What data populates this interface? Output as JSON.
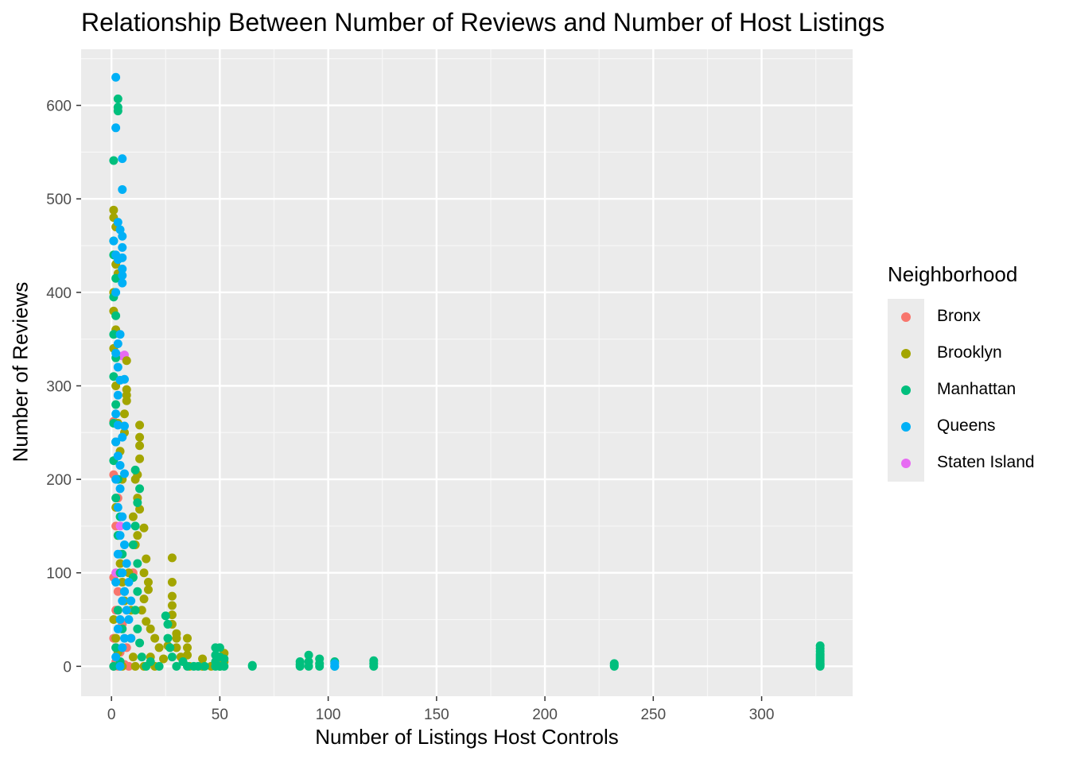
{
  "chart_data": {
    "type": "scatter",
    "title": "Relationship Between Number of Reviews and Number of Host Listings",
    "xlabel": "Number of Listings Host Controls",
    "ylabel": "Number of Reviews",
    "xlim": [
      -14,
      342
    ],
    "ylim": [
      -32,
      660
    ],
    "x_ticks": [
      0,
      50,
      100,
      150,
      200,
      250,
      300
    ],
    "y_ticks": [
      0,
      100,
      200,
      300,
      400,
      500,
      600
    ],
    "grid": true,
    "legend": {
      "title": "Neighborhood",
      "position": "right"
    },
    "series": [
      {
        "name": "Bronx",
        "color": "#F8766D",
        "points": [
          [
            1,
            262
          ],
          [
            2,
            240
          ],
          [
            1,
            205
          ],
          [
            3,
            180
          ],
          [
            2,
            150
          ],
          [
            4,
            120
          ],
          [
            1,
            95
          ],
          [
            3,
            80
          ],
          [
            2,
            60
          ],
          [
            5,
            45
          ],
          [
            1,
            30
          ],
          [
            4,
            15
          ],
          [
            2,
            5
          ],
          [
            6,
            2
          ],
          [
            8,
            0
          ],
          [
            1,
            0
          ],
          [
            3,
            0
          ],
          [
            10,
            100
          ],
          [
            7,
            20
          ],
          [
            4,
            3
          ]
        ]
      },
      {
        "name": "Brooklyn",
        "color": "#A3A500",
        "points": [
          [
            1,
            488
          ],
          [
            1,
            480
          ],
          [
            2,
            470
          ],
          [
            2,
            430
          ],
          [
            3,
            420
          ],
          [
            1,
            400
          ],
          [
            1,
            380
          ],
          [
            2,
            360
          ],
          [
            1,
            340
          ],
          [
            7,
            327
          ],
          [
            7,
            296
          ],
          [
            7,
            290
          ],
          [
            7,
            284
          ],
          [
            6,
            270
          ],
          [
            6,
            250
          ],
          [
            13,
            258
          ],
          [
            13,
            245
          ],
          [
            13,
            236
          ],
          [
            13,
            222
          ],
          [
            12,
            205
          ],
          [
            11,
            200
          ],
          [
            12,
            180
          ],
          [
            13,
            168
          ],
          [
            10,
            160
          ],
          [
            15,
            148
          ],
          [
            12,
            140
          ],
          [
            11,
            130
          ],
          [
            16,
            115
          ],
          [
            15,
            100
          ],
          [
            17,
            90
          ],
          [
            17,
            82
          ],
          [
            15,
            72
          ],
          [
            14,
            60
          ],
          [
            16,
            48
          ],
          [
            18,
            40
          ],
          [
            20,
            30
          ],
          [
            22,
            20
          ],
          [
            18,
            10
          ],
          [
            15,
            0
          ],
          [
            28,
            116
          ],
          [
            28,
            90
          ],
          [
            28,
            75
          ],
          [
            28,
            65
          ],
          [
            28,
            55
          ],
          [
            28,
            45
          ],
          [
            30,
            35
          ],
          [
            30,
            30
          ],
          [
            30,
            20
          ],
          [
            32,
            10
          ],
          [
            35,
            30
          ],
          [
            35,
            20
          ],
          [
            35,
            12
          ],
          [
            42,
            8
          ],
          [
            42,
            0
          ],
          [
            52,
            14
          ],
          [
            52,
            5
          ],
          [
            50,
            0
          ],
          [
            46,
            0
          ],
          [
            36,
            0
          ],
          [
            26,
            22
          ],
          [
            24,
            8
          ],
          [
            20,
            0
          ],
          [
            2,
            300
          ],
          [
            3,
            260
          ],
          [
            4,
            230
          ],
          [
            5,
            200
          ],
          [
            2,
            170
          ],
          [
            3,
            140
          ],
          [
            4,
            110
          ],
          [
            5,
            90
          ],
          [
            6,
            70
          ],
          [
            1,
            50
          ],
          [
            2,
            30
          ],
          [
            3,
            15
          ],
          [
            4,
            5
          ],
          [
            5,
            0
          ],
          [
            8,
            100
          ],
          [
            9,
            60
          ],
          [
            9,
            30
          ],
          [
            10,
            10
          ],
          [
            11,
            0
          ]
        ]
      },
      {
        "name": "Manhattan",
        "color": "#00BF7D",
        "points": [
          [
            3,
            607
          ],
          [
            3,
            598
          ],
          [
            3,
            594
          ],
          [
            1,
            541
          ],
          [
            1,
            455
          ],
          [
            1,
            440
          ],
          [
            2,
            415
          ],
          [
            1,
            395
          ],
          [
            2,
            375
          ],
          [
            1,
            355
          ],
          [
            2,
            330
          ],
          [
            1,
            310
          ],
          [
            2,
            280
          ],
          [
            1,
            260
          ],
          [
            2,
            240
          ],
          [
            1,
            220
          ],
          [
            3,
            200
          ],
          [
            2,
            180
          ],
          [
            4,
            160
          ],
          [
            3,
            140
          ],
          [
            5,
            120
          ],
          [
            4,
            100
          ],
          [
            6,
            80
          ],
          [
            3,
            60
          ],
          [
            5,
            40
          ],
          [
            2,
            20
          ],
          [
            4,
            5
          ],
          [
            1,
            0
          ],
          [
            11,
            210
          ],
          [
            13,
            190
          ],
          [
            12,
            175
          ],
          [
            11,
            150
          ],
          [
            10,
            130
          ],
          [
            12,
            110
          ],
          [
            10,
            95
          ],
          [
            12,
            80
          ],
          [
            11,
            60
          ],
          [
            12,
            40
          ],
          [
            13,
            25
          ],
          [
            14,
            10
          ],
          [
            16,
            0
          ],
          [
            18,
            5
          ],
          [
            22,
            0
          ],
          [
            25,
            54
          ],
          [
            26,
            45
          ],
          [
            26,
            30
          ],
          [
            27,
            20
          ],
          [
            28,
            10
          ],
          [
            30,
            0
          ],
          [
            33,
            5
          ],
          [
            35,
            0
          ],
          [
            38,
            0
          ],
          [
            40,
            0
          ],
          [
            43,
            0
          ],
          [
            48,
            20
          ],
          [
            48,
            12
          ],
          [
            48,
            5
          ],
          [
            48,
            0
          ],
          [
            50,
            20
          ],
          [
            50,
            10
          ],
          [
            50,
            0
          ],
          [
            52,
            8
          ],
          [
            52,
            0
          ],
          [
            65,
            1
          ],
          [
            65,
            0
          ],
          [
            87,
            5
          ],
          [
            87,
            2
          ],
          [
            87,
            0
          ],
          [
            91,
            12
          ],
          [
            91,
            5
          ],
          [
            91,
            0
          ],
          [
            96,
            8
          ],
          [
            96,
            3
          ],
          [
            96,
            0
          ],
          [
            103,
            5
          ],
          [
            103,
            0
          ],
          [
            121,
            6
          ],
          [
            121,
            3
          ],
          [
            121,
            0
          ],
          [
            232,
            3
          ],
          [
            232,
            1
          ],
          [
            232,
            0
          ],
          [
            327,
            22
          ],
          [
            327,
            19
          ],
          [
            327,
            16
          ],
          [
            327,
            13
          ],
          [
            327,
            11
          ],
          [
            327,
            9
          ],
          [
            327,
            7
          ],
          [
            327,
            5
          ],
          [
            327,
            3
          ],
          [
            327,
            2
          ],
          [
            327,
            1
          ],
          [
            327,
            0
          ]
        ]
      },
      {
        "name": "Queens",
        "color": "#00B0F6",
        "points": [
          [
            2,
            630
          ],
          [
            2,
            576
          ],
          [
            5,
            543
          ],
          [
            5,
            510
          ],
          [
            3,
            475
          ],
          [
            4,
            467
          ],
          [
            5,
            460
          ],
          [
            1,
            455
          ],
          [
            5,
            448
          ],
          [
            2,
            440
          ],
          [
            5,
            437
          ],
          [
            3,
            435
          ],
          [
            5,
            425
          ],
          [
            5,
            418
          ],
          [
            5,
            410
          ],
          [
            2,
            400
          ],
          [
            4,
            355
          ],
          [
            3,
            345
          ],
          [
            2,
            335
          ],
          [
            3,
            320
          ],
          [
            4,
            306
          ],
          [
            6,
            307
          ],
          [
            3,
            290
          ],
          [
            2,
            270
          ],
          [
            3,
            258
          ],
          [
            6,
            257
          ],
          [
            5,
            245
          ],
          [
            2,
            240
          ],
          [
            3,
            225
          ],
          [
            4,
            215
          ],
          [
            6,
            206
          ],
          [
            2,
            200
          ],
          [
            4,
            190
          ],
          [
            3,
            170
          ],
          [
            5,
            160
          ],
          [
            7,
            150
          ],
          [
            4,
            140
          ],
          [
            6,
            130
          ],
          [
            3,
            120
          ],
          [
            7,
            110
          ],
          [
            5,
            100
          ],
          [
            2,
            90
          ],
          [
            6,
            80
          ],
          [
            5,
            70
          ],
          [
            7,
            60
          ],
          [
            4,
            50
          ],
          [
            3,
            40
          ],
          [
            6,
            30
          ],
          [
            5,
            20
          ],
          [
            2,
            10
          ],
          [
            4,
            0
          ],
          [
            103,
            3
          ],
          [
            103,
            0
          ],
          [
            8,
            90
          ],
          [
            9,
            70
          ],
          [
            8,
            50
          ],
          [
            9,
            30
          ]
        ]
      },
      {
        "name": "Staten Island",
        "color": "#E76BF3",
        "points": [
          [
            6,
            333
          ],
          [
            5,
            332
          ],
          [
            3,
            200
          ],
          [
            4,
            150
          ],
          [
            2,
            100
          ],
          [
            3,
            60
          ],
          [
            2,
            20
          ],
          [
            4,
            5
          ]
        ]
      }
    ]
  }
}
